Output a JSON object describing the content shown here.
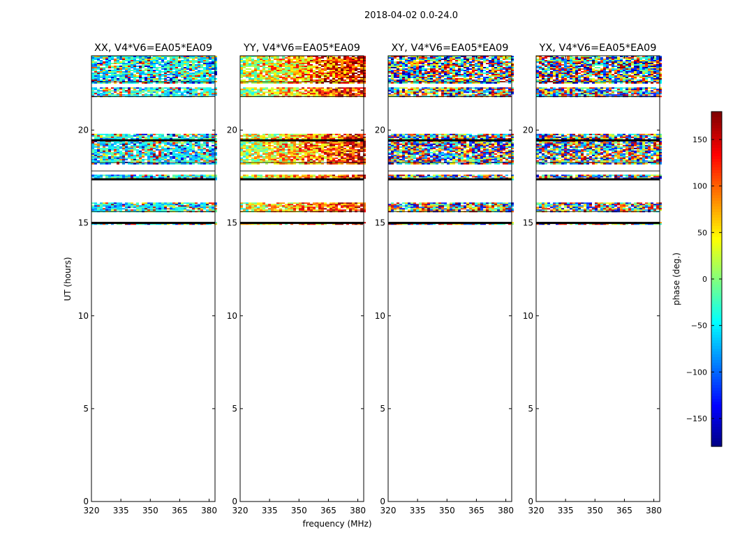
{
  "figure": {
    "suptitle": "2018-04-02 0.0-24.0"
  },
  "chart_data": {
    "type": "heatmap",
    "title": "2018-04-02 0.0-24.0",
    "xlabel": "frequency (MHz)",
    "ylabel": "UT (hours)",
    "xlim": [
      320,
      383
    ],
    "ylim": [
      0,
      24
    ],
    "xticks": [
      320,
      335,
      350,
      365,
      380
    ],
    "yticks": [
      0,
      5,
      10,
      15,
      20
    ],
    "panels": [
      {
        "title": "XX, V4*V6=EA05*EA09",
        "pol": "XX"
      },
      {
        "title": "YY, V4*V6=EA05*EA09",
        "pol": "YY"
      },
      {
        "title": "XY, V4*V6=EA05*EA09",
        "pol": "XY"
      },
      {
        "title": "YX, V4*V6=EA05*EA09",
        "pol": "YX"
      }
    ],
    "data_bands_ut": [
      {
        "from": 22.5,
        "to": 24.0,
        "note": "noisy phase"
      },
      {
        "from": 21.8,
        "to": 22.3,
        "note": "noisy phase, sparse"
      },
      {
        "from": 18.2,
        "to": 19.8,
        "note": "noisy phase, dark line near 19.4"
      },
      {
        "from": 17.3,
        "to": 17.6,
        "note": "dark band"
      },
      {
        "from": 15.6,
        "to": 16.1,
        "note": "noisy phase"
      },
      {
        "from": 14.95,
        "to": 15.05,
        "note": "thin line"
      }
    ],
    "colorbar": {
      "label": "phase (deg.)",
      "range": [
        -180,
        180
      ],
      "ticks": [
        -150,
        -100,
        -50,
        0,
        50,
        100,
        150
      ],
      "colormap": "jet"
    }
  }
}
